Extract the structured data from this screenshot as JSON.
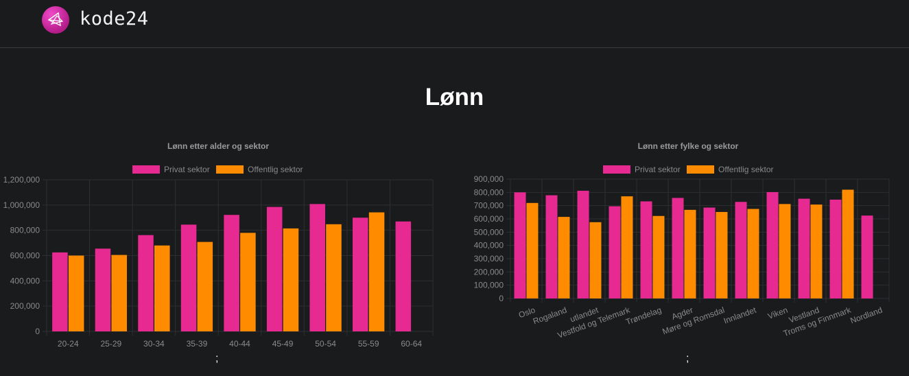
{
  "header": {
    "logo_icon": "kode24-logo-icon",
    "logo_text": "kode24"
  },
  "page": {
    "title": "Lønn",
    "separator_left": ";",
    "separator_right": ";"
  },
  "colors": {
    "privat": "#e62a92",
    "offentlig": "#ff8c00",
    "background": "#1a1b1d",
    "grid": "#2e2f32",
    "text_muted": "#8a8a8a"
  },
  "chart_data": [
    {
      "type": "bar",
      "title": "Lønn etter alder og sektor",
      "categories": [
        "20-24",
        "25-29",
        "30-34",
        "35-39",
        "40-44",
        "45-49",
        "50-54",
        "55-59",
        "60-64"
      ],
      "series": [
        {
          "name": "Privat sektor",
          "color": "#e62a92",
          "values": [
            625000,
            655000,
            762000,
            845000,
            922000,
            985000,
            1008000,
            900000,
            870000
          ]
        },
        {
          "name": "Offentlig sektor",
          "color": "#ff8c00",
          "values": [
            600000,
            605000,
            680000,
            708000,
            780000,
            815000,
            848000,
            942000,
            null
          ]
        }
      ],
      "yticks": [
        "1,200,000",
        "1,000,000",
        "800,000",
        "600,000",
        "400,000",
        "200,000",
        "0"
      ],
      "ylim": [
        0,
        1200000
      ],
      "legend": "top",
      "grid": true
    },
    {
      "type": "bar",
      "title": "Lønn etter fylke og sektor",
      "categories": [
        "Oslo",
        "Rogaland",
        "utlandet",
        "Vestfold og Telemark",
        "Trøndelag",
        "Agder",
        "Møre og Romsdal",
        "Innlandet",
        "Viken",
        "Vestland",
        "Troms og Finnmark",
        "Nordland"
      ],
      "series": [
        {
          "name": "Privat sektor",
          "color": "#e62a92",
          "values": [
            800000,
            778000,
            812000,
            695000,
            732000,
            758000,
            685000,
            728000,
            802000,
            752000,
            745000,
            625000
          ]
        },
        {
          "name": "Offentlig sektor",
          "color": "#ff8c00",
          "values": [
            720000,
            615000,
            575000,
            770000,
            622000,
            668000,
            652000,
            675000,
            712000,
            708000,
            820000,
            null
          ]
        }
      ],
      "yticks": [
        "900,000",
        "800,000",
        "700,000",
        "600,000",
        "500,000",
        "400,000",
        "300,000",
        "200,000",
        "100,000",
        "0"
      ],
      "ylim": [
        0,
        900000
      ],
      "legend": "top",
      "grid": true
    }
  ]
}
